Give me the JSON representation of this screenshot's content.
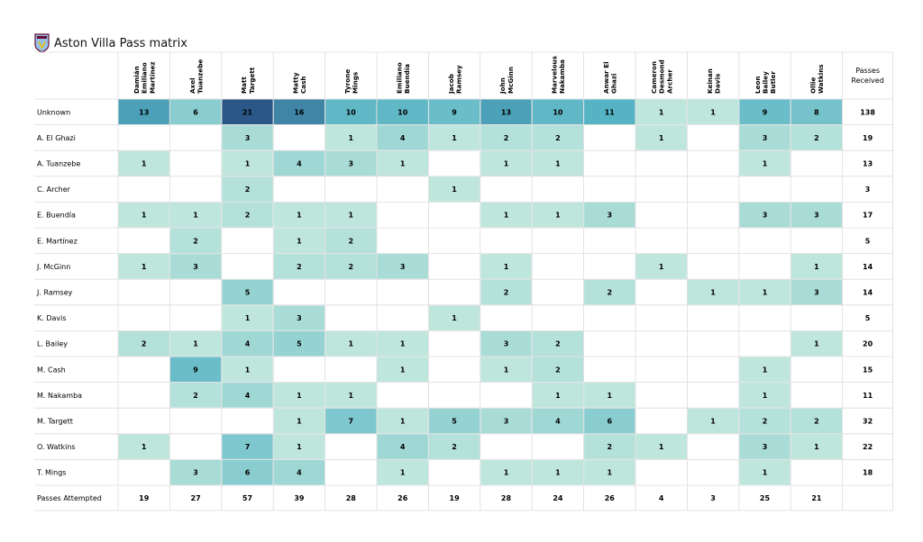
{
  "header": {
    "title": "Aston Villa Pass matrix",
    "logo_icon": "aston-villa-crest-icon"
  },
  "chart_data": {
    "type": "heatmap",
    "title": "Aston Villa Pass matrix",
    "columns": [
      [
        "Damián",
        "Emiliano",
        "Martínez"
      ],
      [
        "Axel",
        "Tuanzebe"
      ],
      [
        "Matt",
        "Targett"
      ],
      [
        "Matty",
        "Cash"
      ],
      [
        "Tyrone",
        "Mings"
      ],
      [
        "Emiliano",
        "Buendía"
      ],
      [
        "Jacob",
        "Ramsey"
      ],
      [
        "John",
        "McGinn"
      ],
      [
        "Marvelous",
        "Nakamba"
      ],
      [
        "Anwar El",
        "Ghazi"
      ],
      [
        "Cameron",
        "Desmond",
        "Archer"
      ],
      [
        "Keinan",
        "Davis"
      ],
      [
        "Leon",
        "Bailey",
        "Butler"
      ],
      [
        "Ollie",
        "Watkins"
      ]
    ],
    "rows": [
      "Unknown",
      "A. El Ghazi",
      "A. Tuanzebe",
      "C. Archer",
      "E. Buendía",
      "E. Martínez",
      "J.  McGinn",
      "J. Ramsey",
      "K. Davis",
      "L. Bailey",
      "M. Cash",
      "M. Nakamba",
      "M. Targett",
      "O. Watkins",
      "T. Mings"
    ],
    "values": [
      [
        13,
        6,
        21,
        16,
        10,
        10,
        9,
        13,
        10,
        11,
        1,
        1,
        9,
        8
      ],
      [
        null,
        null,
        3,
        null,
        1,
        4,
        1,
        2,
        2,
        null,
        1,
        null,
        3,
        2
      ],
      [
        1,
        null,
        1,
        4,
        3,
        1,
        null,
        1,
        1,
        null,
        null,
        null,
        1,
        null
      ],
      [
        null,
        null,
        2,
        null,
        null,
        null,
        1,
        null,
        null,
        null,
        null,
        null,
        null,
        null
      ],
      [
        1,
        1,
        2,
        1,
        1,
        null,
        null,
        1,
        1,
        3,
        null,
        null,
        3,
        3
      ],
      [
        null,
        2,
        null,
        1,
        2,
        null,
        null,
        null,
        null,
        null,
        null,
        null,
        null,
        null
      ],
      [
        1,
        3,
        null,
        2,
        2,
        3,
        null,
        1,
        null,
        null,
        1,
        null,
        null,
        1
      ],
      [
        null,
        null,
        5,
        null,
        null,
        null,
        null,
        2,
        null,
        2,
        null,
        1,
        1,
        3
      ],
      [
        null,
        null,
        1,
        3,
        null,
        null,
        1,
        null,
        null,
        null,
        null,
        null,
        null,
        null
      ],
      [
        2,
        1,
        4,
        5,
        1,
        1,
        null,
        3,
        2,
        null,
        null,
        null,
        null,
        1
      ],
      [
        null,
        9,
        1,
        null,
        null,
        1,
        null,
        1,
        2,
        null,
        null,
        null,
        1,
        null
      ],
      [
        null,
        2,
        4,
        1,
        1,
        null,
        null,
        null,
        1,
        1,
        null,
        null,
        1,
        null
      ],
      [
        null,
        null,
        null,
        1,
        7,
        1,
        5,
        3,
        4,
        6,
        null,
        1,
        2,
        2
      ],
      [
        1,
        null,
        7,
        1,
        null,
        4,
        2,
        null,
        null,
        2,
        1,
        null,
        3,
        1
      ],
      [
        null,
        3,
        6,
        4,
        null,
        1,
        null,
        1,
        1,
        1,
        null,
        null,
        1,
        null
      ]
    ],
    "passes_received_label": [
      "Passes",
      "Received"
    ],
    "passes_received": [
      138,
      19,
      13,
      3,
      17,
      5,
      14,
      14,
      5,
      20,
      15,
      11,
      32,
      22,
      18
    ],
    "passes_attempted_label": "Passes Attempted",
    "passes_attempted": [
      19,
      27,
      57,
      39,
      28,
      26,
      19,
      28,
      24,
      26,
      4,
      3,
      25,
      21
    ],
    "vmin": 0,
    "vmax": 21,
    "colors": {
      "low": "#bfe6dc",
      "mid": "#55b3c4",
      "high": "#2a5788",
      "grid": "#dcdcdc"
    }
  }
}
